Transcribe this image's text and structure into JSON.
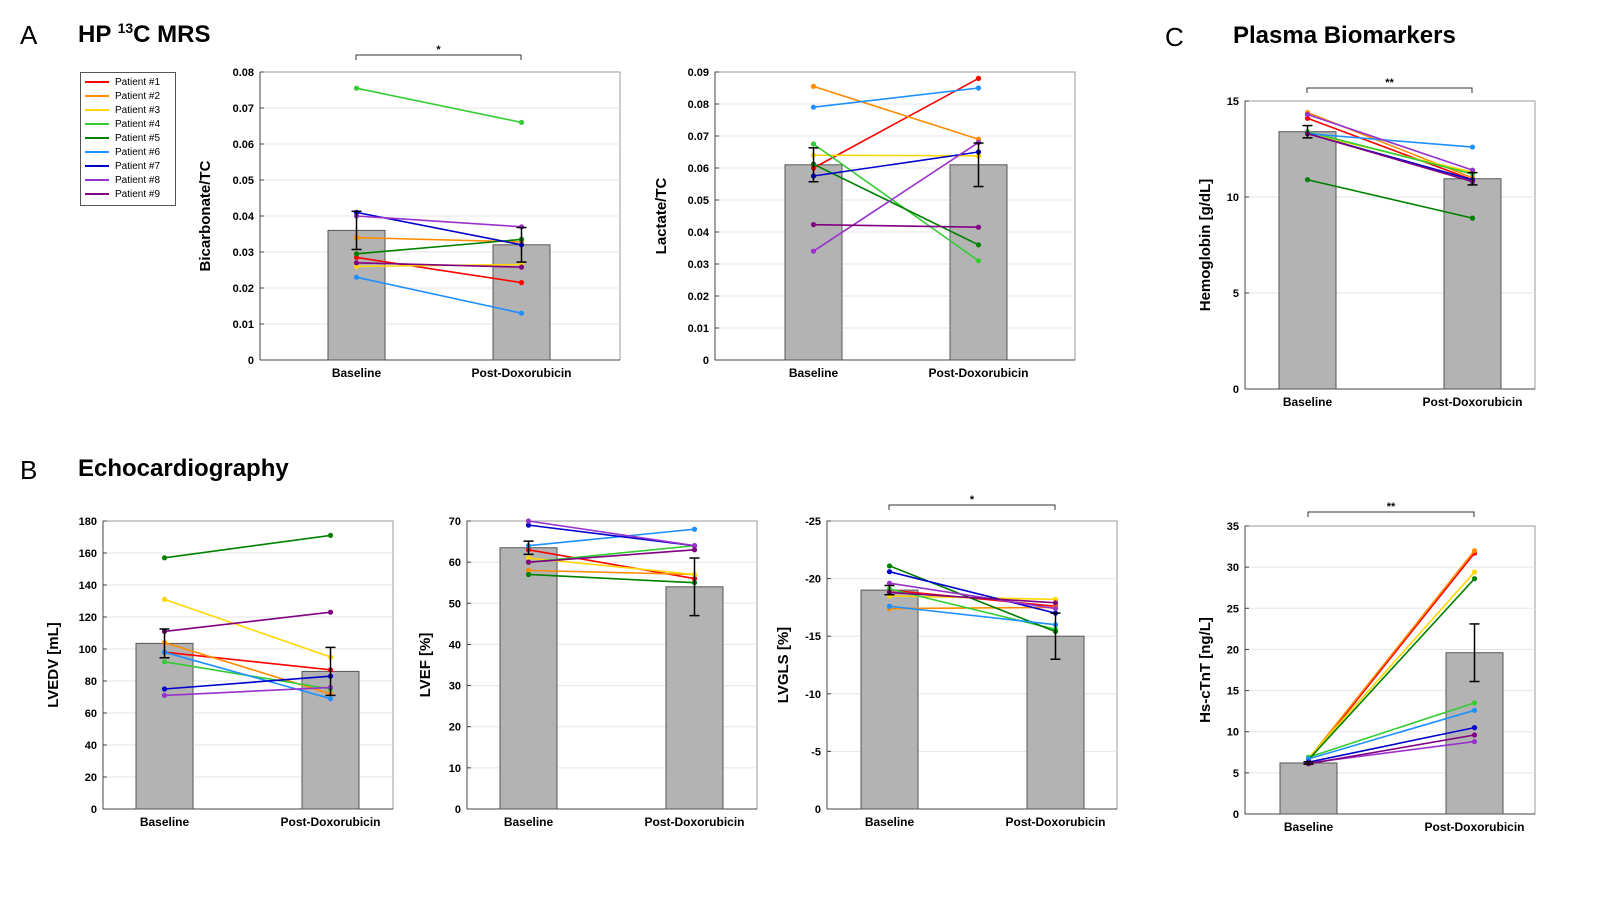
{
  "panels": {
    "A": {
      "letter": "A",
      "title_main": "HP ",
      "title_sup": "13",
      "title_rest": "C MRS"
    },
    "B": {
      "letter": "B",
      "title": "Echocardiography"
    },
    "C": {
      "letter": "C",
      "title": "Plasma Biomarkers"
    }
  },
  "legend": [
    {
      "label": "Patient #1",
      "color": "#ff0000"
    },
    {
      "label": "Patient #2",
      "color": "#ff8c00"
    },
    {
      "label": "Patient #3",
      "color": "#ffd700"
    },
    {
      "label": "Patient #4",
      "color": "#33cc33"
    },
    {
      "label": "Patient #5",
      "color": "#008000"
    },
    {
      "label": "Patient #6",
      "color": "#1e90ff"
    },
    {
      "label": "Patient #7",
      "color": "#0000cd"
    },
    {
      "label": "Patient #8",
      "color": "#9932cc"
    },
    {
      "label": "Patient #9",
      "color": "#800080"
    }
  ],
  "chart_data": [
    {
      "id": "bicarbonate",
      "type": "bar",
      "categories": [
        "Baseline",
        "Post-Doxorubicin"
      ],
      "ylabel": "Bicarbonate/TC",
      "ylim": [
        0,
        0.08
      ],
      "yticks": [
        0,
        0.01,
        0.02,
        0.03,
        0.04,
        0.05,
        0.06,
        0.07,
        0.08
      ],
      "tick_labels": [
        "0",
        "0.01",
        "0.02",
        "0.03",
        "0.04",
        "0.05",
        "0.06",
        "0.07",
        "0.08"
      ],
      "means": [
        0.036,
        0.032
      ],
      "errors": [
        0.0053,
        0.0048
      ],
      "significance": "*",
      "series": [
        {
          "name": "Patient #1",
          "values": [
            0.0285,
            0.0215
          ]
        },
        {
          "name": "Patient #2",
          "values": [
            0.034,
            0.0328
          ]
        },
        {
          "name": "Patient #3",
          "values": [
            0.026,
            0.0265
          ]
        },
        {
          "name": "Patient #4",
          "values": [
            0.0755,
            0.066
          ]
        },
        {
          "name": "Patient #5",
          "values": [
            0.0295,
            0.0335
          ]
        },
        {
          "name": "Patient #6",
          "values": [
            0.023,
            0.013
          ]
        },
        {
          "name": "Patient #7",
          "values": [
            0.041,
            0.032
          ]
        },
        {
          "name": "Patient #8",
          "values": [
            0.04,
            0.037
          ]
        },
        {
          "name": "Patient #9",
          "values": [
            0.027,
            0.0258
          ]
        }
      ]
    },
    {
      "id": "lactate",
      "type": "bar",
      "categories": [
        "Baseline",
        "Post-Doxorubicin"
      ],
      "ylabel": "Lactate/TC",
      "ylim": [
        0,
        0.09
      ],
      "yticks": [
        0,
        0.01,
        0.02,
        0.03,
        0.04,
        0.05,
        0.06,
        0.07,
        0.08,
        0.09
      ],
      "tick_labels": [
        "0",
        "0.01",
        "0.02",
        "0.03",
        "0.04",
        "0.05",
        "0.06",
        "0.07",
        "0.08",
        "0.09"
      ],
      "means": [
        0.061,
        0.061
      ],
      "errors": [
        0.0053,
        0.0068
      ],
      "significance": "",
      "series": [
        {
          "name": "Patient #1",
          "values": [
            0.06,
            0.088
          ]
        },
        {
          "name": "Patient #2",
          "values": [
            0.0855,
            0.069
          ]
        },
        {
          "name": "Patient #3",
          "values": [
            0.064,
            0.0638
          ]
        },
        {
          "name": "Patient #4",
          "values": [
            0.0675,
            0.031
          ]
        },
        {
          "name": "Patient #5",
          "values": [
            0.0612,
            0.036
          ]
        },
        {
          "name": "Patient #6",
          "values": [
            0.079,
            0.085
          ]
        },
        {
          "name": "Patient #7",
          "values": [
            0.0575,
            0.065
          ]
        },
        {
          "name": "Patient #8",
          "values": [
            0.034,
            0.068
          ]
        },
        {
          "name": "Patient #9",
          "values": [
            0.0423,
            0.0415
          ]
        }
      ]
    },
    {
      "id": "hemoglobin",
      "type": "bar",
      "categories": [
        "Baseline",
        "Post-Doxorubicin"
      ],
      "ylabel": "Hemoglobin [g/dL]",
      "ylim": [
        0,
        15
      ],
      "yticks": [
        0,
        5,
        10,
        15
      ],
      "tick_labels": [
        "0",
        "5",
        "10",
        "15"
      ],
      "means": [
        13.4,
        10.95
      ],
      "errors": [
        0.32,
        0.32
      ],
      "significance": "**",
      "series": [
        {
          "name": "Patient #1",
          "values": [
            14.1,
            10.9
          ]
        },
        {
          "name": "Patient #2",
          "values": [
            14.4,
            11.0
          ]
        },
        {
          "name": "Patient #3",
          "values": [
            13.3,
            11.3
          ]
        },
        {
          "name": "Patient #4",
          "values": [
            13.4,
            11.2
          ]
        },
        {
          "name": "Patient #5",
          "values": [
            10.9,
            8.9
          ]
        },
        {
          "name": "Patient #6",
          "values": [
            13.3,
            12.6
          ]
        },
        {
          "name": "Patient #7",
          "values": [
            13.3,
            10.9
          ]
        },
        {
          "name": "Patient #8",
          "values": [
            14.3,
            11.4
          ]
        },
        {
          "name": "Patient #9",
          "values": [
            13.3,
            10.8
          ]
        }
      ]
    },
    {
      "id": "lvedv",
      "type": "bar",
      "categories": [
        "Baseline",
        "Post-Doxorubicin"
      ],
      "ylabel": "LVEDV [mL]",
      "ylim": [
        0,
        180
      ],
      "yticks": [
        0,
        20,
        40,
        60,
        80,
        100,
        120,
        140,
        160,
        180
      ],
      "tick_labels": [
        "0",
        "20",
        "40",
        "60",
        "80",
        "100",
        "120",
        "140",
        "160",
        "180"
      ],
      "means": [
        103.5,
        86
      ],
      "errors": [
        9,
        15
      ],
      "significance": "",
      "series": [
        {
          "name": "Patient #1",
          "values": [
            98,
            87
          ]
        },
        {
          "name": "Patient #2",
          "values": [
            104,
            72
          ]
        },
        {
          "name": "Patient #3",
          "values": [
            131,
            95
          ]
        },
        {
          "name": "Patient #4",
          "values": [
            92,
            75
          ]
        },
        {
          "name": "Patient #5",
          "values": [
            157,
            171
          ]
        },
        {
          "name": "Patient #6",
          "values": [
            98,
            69
          ]
        },
        {
          "name": "Patient #7",
          "values": [
            75,
            83
          ]
        },
        {
          "name": "Patient #8",
          "values": [
            71,
            76
          ]
        },
        {
          "name": "Patient #9",
          "values": [
            111,
            123
          ]
        }
      ]
    },
    {
      "id": "lvef",
      "type": "bar",
      "categories": [
        "Baseline",
        "Post-Doxorubicin"
      ],
      "ylabel": "LVEF [%]",
      "ylim": [
        0,
        70
      ],
      "yticks": [
        0,
        10,
        20,
        30,
        40,
        50,
        60,
        70
      ],
      "tick_labels": [
        "0",
        "10",
        "20",
        "30",
        "40",
        "50",
        "60",
        "70"
      ],
      "means": [
        63.5,
        54
      ],
      "errors": [
        1.6,
        7
      ],
      "significance": "",
      "series": [
        {
          "name": "Patient #1",
          "values": [
            63,
            56
          ]
        },
        {
          "name": "Patient #2",
          "values": [
            58,
            57
          ]
        },
        {
          "name": "Patient #3",
          "values": [
            61,
            57
          ]
        },
        {
          "name": "Patient #4",
          "values": [
            60,
            64
          ]
        },
        {
          "name": "Patient #5",
          "values": [
            57,
            55
          ]
        },
        {
          "name": "Patient #6",
          "values": [
            64,
            68
          ]
        },
        {
          "name": "Patient #7",
          "values": [
            69,
            64
          ]
        },
        {
          "name": "Patient #8",
          "values": [
            70,
            64
          ]
        },
        {
          "name": "Patient #9",
          "values": [
            60,
            63
          ]
        }
      ]
    },
    {
      "id": "lvgls",
      "type": "bar",
      "categories": [
        "Baseline",
        "Post-Doxorubicin"
      ],
      "ylabel": "LVGLS [%]",
      "ylim": [
        0,
        -25
      ],
      "yticks": [
        0,
        -5,
        -10,
        -15,
        -20,
        -25
      ],
      "tick_labels": [
        "0",
        "-5",
        "-10",
        "-15",
        "-20",
        "-25"
      ],
      "means": [
        -19,
        -15
      ],
      "errors": [
        0.4,
        2
      ],
      "significance": "*",
      "series": [
        {
          "name": "Patient #1",
          "values": [
            -19,
            -17.6
          ]
        },
        {
          "name": "Patient #2",
          "values": [
            -17.4,
            -17.5
          ]
        },
        {
          "name": "Patient #3",
          "values": [
            -18.5,
            -18.2
          ]
        },
        {
          "name": "Patient #4",
          "values": [
            -19.1,
            -15.6
          ]
        },
        {
          "name": "Patient #5",
          "values": [
            -21.1,
            -15.4
          ]
        },
        {
          "name": "Patient #6",
          "values": [
            -17.6,
            -16.0
          ]
        },
        {
          "name": "Patient #7",
          "values": [
            -20.6,
            -17.0
          ]
        },
        {
          "name": "Patient #8",
          "values": [
            -19.6,
            -17.4
          ]
        },
        {
          "name": "Patient #9",
          "values": [
            -18.8,
            -17.9
          ]
        }
      ]
    },
    {
      "id": "hs-ctnt",
      "type": "bar",
      "categories": [
        "Baseline",
        "Post-Doxorubicin"
      ],
      "ylabel": "Hs-cTnT [ng/L]",
      "ylim": [
        0,
        35
      ],
      "yticks": [
        0,
        5,
        10,
        15,
        20,
        25,
        30,
        35
      ],
      "tick_labels": [
        "0",
        "5",
        "10",
        "15",
        "20",
        "25",
        "30",
        "35"
      ],
      "means": [
        6.2,
        19.6
      ],
      "errors": [
        0.15,
        3.5
      ],
      "significance": "**",
      "series": [
        {
          "name": "Patient #1",
          "values": [
            6.5,
            31.7
          ]
        },
        {
          "name": "Patient #2",
          "values": [
            6.7,
            32
          ]
        },
        {
          "name": "Patient #3",
          "values": [
            6.8,
            29.4
          ]
        },
        {
          "name": "Patient #4",
          "values": [
            6.9,
            13.5
          ]
        },
        {
          "name": "Patient #5",
          "values": [
            6.6,
            28.6
          ]
        },
        {
          "name": "Patient #6",
          "values": [
            6.7,
            12.6
          ]
        },
        {
          "name": "Patient #7",
          "values": [
            6.3,
            10.5
          ]
        },
        {
          "name": "Patient #8",
          "values": [
            6.2,
            8.8
          ]
        },
        {
          "name": "Patient #9",
          "values": [
            6.1,
            9.6
          ]
        }
      ]
    }
  ]
}
